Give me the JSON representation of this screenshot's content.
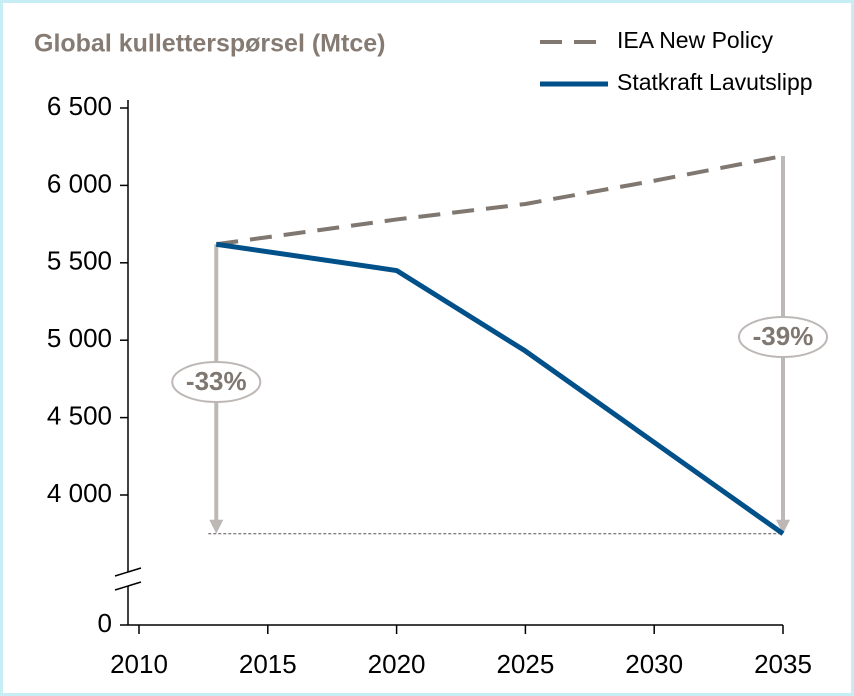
{
  "chart_data": {
    "type": "line",
    "title": "Global kulletterspørsel (Mtce)",
    "x": [
      2013,
      2020,
      2025,
      2030,
      2035
    ],
    "series": [
      {
        "name": "IEA New Policy",
        "color": "#7f7770",
        "dashed": true,
        "values": [
          5620,
          5780,
          5880,
          6030,
          6190
        ]
      },
      {
        "name": "Statkraft Lavutslipp",
        "color": "#00508a",
        "dashed": false,
        "values": [
          5620,
          5450,
          4930,
          4340,
          3750
        ]
      }
    ],
    "annotations": [
      "-33%",
      "-39%"
    ],
    "xlim": [
      2010,
      2035
    ],
    "xticks": [
      2010,
      2015,
      2020,
      2025,
      2030,
      2035
    ],
    "ylim": [
      0,
      6500
    ],
    "yticks": [
      0,
      {
        "value": 4000,
        "label": "4 000"
      },
      {
        "value": 4500,
        "label": "4 500"
      },
      {
        "value": 5000,
        "label": "5 000"
      },
      {
        "value": 5500,
        "label": "5 500"
      },
      {
        "value": 6000,
        "label": "6 000"
      },
      {
        "value": 6500,
        "label": "6 500"
      }
    ],
    "axis_break": true,
    "legend": "top-right"
  }
}
